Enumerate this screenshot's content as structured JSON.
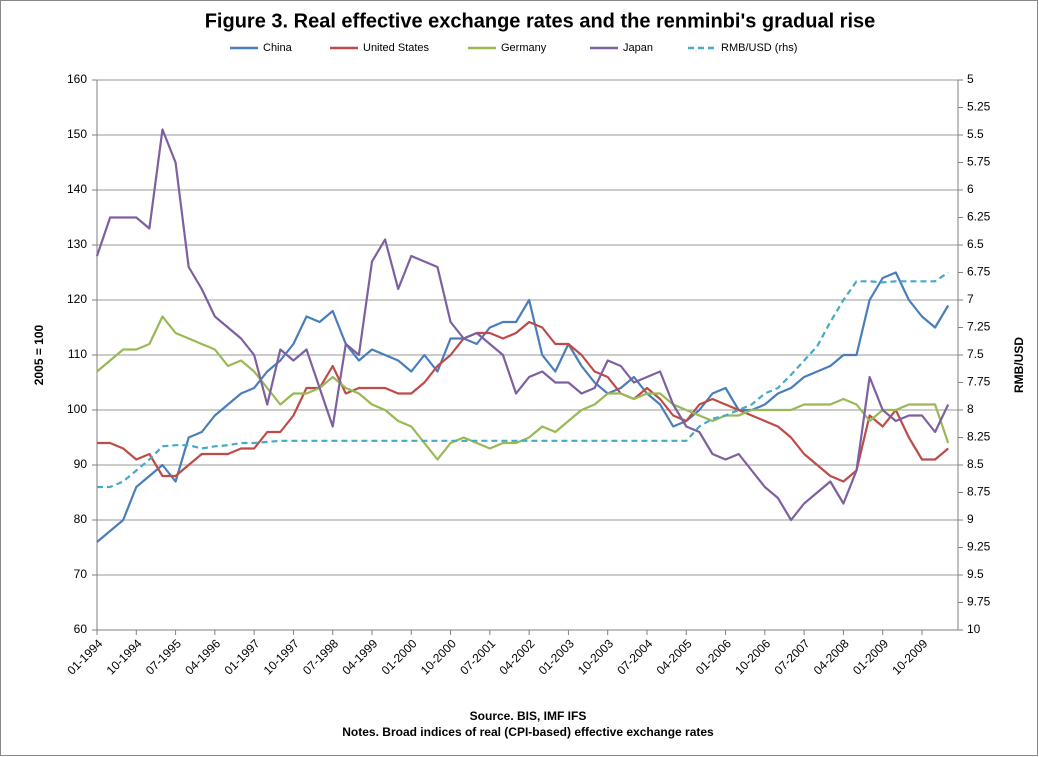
{
  "chart_data": {
    "type": "line",
    "title": "Figure 3. Real effective exchange rates and the renminbi's gradual rise",
    "ylabel": "2005 = 100",
    "y2label": "RMB/USD",
    "source": "Source. BIS, IMF IFS",
    "notes": "Notes. Broad indices of real (CPI-based) effective exchange rates",
    "categories": [
      "01-1994",
      null,
      null,
      "10-1994",
      null,
      null,
      "07-1995",
      null,
      null,
      "04-1996",
      null,
      null,
      "01-1997",
      null,
      null,
      "10-1997",
      null,
      null,
      "07-1998",
      null,
      null,
      "04-1999",
      null,
      null,
      "01-2000",
      null,
      null,
      "10-2000",
      null,
      null,
      "07-2001",
      null,
      null,
      "04-2002",
      null,
      null,
      "01-2003",
      null,
      null,
      "10-2003",
      null,
      null,
      "07-2004",
      null,
      null,
      "04-2005",
      null,
      null,
      "01-2006",
      null,
      null,
      "10-2006",
      null,
      null,
      "07-2007",
      null,
      null,
      "04-2008",
      null,
      null,
      "01-2009",
      null,
      null,
      "10-2009",
      null,
      null
    ],
    "ylim": [
      60,
      160
    ],
    "yticks": [
      60,
      70,
      80,
      90,
      100,
      110,
      120,
      130,
      140,
      150,
      160
    ],
    "y2lim": [
      10,
      5
    ],
    "y2ticks": [
      5,
      5.25,
      5.5,
      5.75,
      6,
      6.25,
      6.5,
      6.75,
      7,
      7.25,
      7.5,
      7.75,
      8,
      8.25,
      8.5,
      8.75,
      9,
      9.25,
      9.5,
      9.75,
      10
    ],
    "grid": true,
    "legend": "top",
    "series": [
      {
        "name": "China",
        "color": "#4a7ebb",
        "values": [
          76,
          78,
          80,
          86,
          88,
          90,
          87,
          95,
          96,
          99,
          101,
          103,
          104,
          107,
          109,
          112,
          117,
          116,
          118,
          112,
          109,
          111,
          110,
          109,
          107,
          110,
          107,
          113,
          113,
          112,
          115,
          116,
          116,
          120,
          110,
          107,
          112,
          108,
          105,
          103,
          104,
          106,
          103,
          101,
          97,
          98,
          100,
          103,
          104,
          100,
          100,
          101,
          103,
          104,
          106,
          107,
          108,
          110,
          110,
          120,
          124,
          125,
          120,
          117,
          115,
          119
        ]
      },
      {
        "name": "United States",
        "color": "#be4b48",
        "values": [
          94,
          94,
          93,
          91,
          92,
          88,
          88,
          90,
          92,
          92,
          92,
          93,
          93,
          96,
          96,
          99,
          104,
          104,
          108,
          103,
          104,
          104,
          104,
          103,
          103,
          105,
          108,
          110,
          113,
          114,
          114,
          113,
          114,
          116,
          115,
          112,
          112,
          110,
          107,
          106,
          103,
          102,
          104,
          102,
          99,
          98,
          101,
          102,
          101,
          100,
          99,
          98,
          97,
          95,
          92,
          90,
          88,
          87,
          89,
          99,
          97,
          100,
          95,
          91,
          91,
          93
        ]
      },
      {
        "name": "Germany",
        "color": "#98b954",
        "values": [
          107,
          109,
          111,
          111,
          112,
          117,
          114,
          113,
          112,
          111,
          108,
          109,
          107,
          104,
          101,
          103,
          103,
          104,
          106,
          104,
          103,
          101,
          100,
          98,
          97,
          94,
          91,
          94,
          95,
          94,
          93,
          94,
          94,
          95,
          97,
          96,
          98,
          100,
          101,
          103,
          103,
          102,
          103,
          103,
          101,
          100,
          99,
          98,
          99,
          99,
          100,
          100,
          100,
          100,
          101,
          101,
          101,
          102,
          101,
          98,
          100,
          100,
          101,
          101,
          101,
          94
        ]
      },
      {
        "name": "Japan",
        "color": "#7d60a0",
        "values": [
          128,
          135,
          135,
          135,
          133,
          151,
          145,
          126,
          122,
          117,
          115,
          113,
          110,
          101,
          111,
          109,
          111,
          104,
          97,
          112,
          110,
          127,
          131,
          122,
          128,
          127,
          126,
          116,
          113,
          114,
          112,
          110,
          103,
          106,
          107,
          105,
          105,
          103,
          104,
          109,
          108,
          105,
          106,
          107,
          101,
          97,
          96,
          92,
          91,
          92,
          89,
          86,
          84,
          80,
          83,
          85,
          87,
          83,
          89,
          106,
          100,
          98,
          99,
          99,
          96,
          101
        ]
      },
      {
        "name": "RMB/USD (rhs)",
        "color": "#46aac5",
        "axis": "y2",
        "dashed": true,
        "values": [
          8.7,
          8.7,
          8.65,
          8.55,
          8.45,
          8.33,
          8.32,
          8.32,
          8.35,
          8.33,
          8.32,
          8.3,
          8.3,
          8.29,
          8.28,
          8.28,
          8.28,
          8.28,
          8.28,
          8.28,
          8.28,
          8.28,
          8.28,
          8.28,
          8.28,
          8.28,
          8.28,
          8.28,
          8.28,
          8.28,
          8.28,
          8.28,
          8.28,
          8.28,
          8.28,
          8.28,
          8.28,
          8.28,
          8.28,
          8.28,
          8.28,
          8.28,
          8.28,
          8.28,
          8.28,
          8.28,
          8.15,
          8.08,
          8.05,
          8.0,
          7.95,
          7.85,
          7.8,
          7.68,
          7.55,
          7.42,
          7.2,
          7.0,
          6.83,
          6.83,
          6.84,
          6.83,
          6.83,
          6.83,
          6.83,
          6.75
        ]
      }
    ]
  }
}
